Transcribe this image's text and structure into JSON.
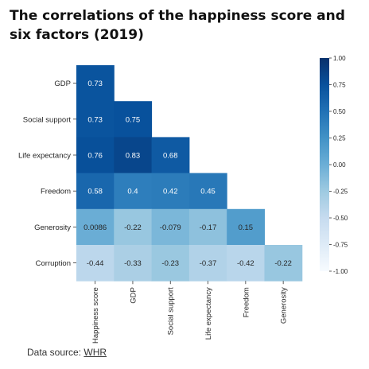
{
  "title": "The correlations of the happiness score and six factors (2019)",
  "source": {
    "label": "Data source:",
    "link_text": "WHR"
  },
  "chart_data": {
    "type": "heatmap",
    "rows": [
      "GDP",
      "Social support",
      "Life expectancy",
      "Freedom",
      "Generosity",
      "Corruption"
    ],
    "columns": [
      "Happiness score",
      "GDP",
      "Social support",
      "Life expectancy",
      "Freedom",
      "Generosity"
    ],
    "values": [
      [
        "0.73",
        null,
        null,
        null,
        null,
        null
      ],
      [
        "0.73",
        "0.75",
        null,
        null,
        null,
        null
      ],
      [
        "0.76",
        "0.83",
        "0.68",
        null,
        null,
        null
      ],
      [
        "0.58",
        "0.4",
        "0.42",
        "0.45",
        null,
        null
      ],
      [
        "0.0086",
        "-0.22",
        "-0.079",
        "-0.17",
        "0.15",
        null
      ],
      [
        "-0.44",
        "-0.33",
        "-0.23",
        "-0.37",
        "-0.42",
        "-0.22"
      ]
    ],
    "colorbar": {
      "range": [
        -1,
        1
      ],
      "ticks": [
        "1.00",
        "0.75",
        "0.50",
        "0.25",
        "0.00",
        "-0.25",
        "-0.50",
        "-0.75",
        "-1.00"
      ],
      "colormap": "Blues"
    }
  }
}
